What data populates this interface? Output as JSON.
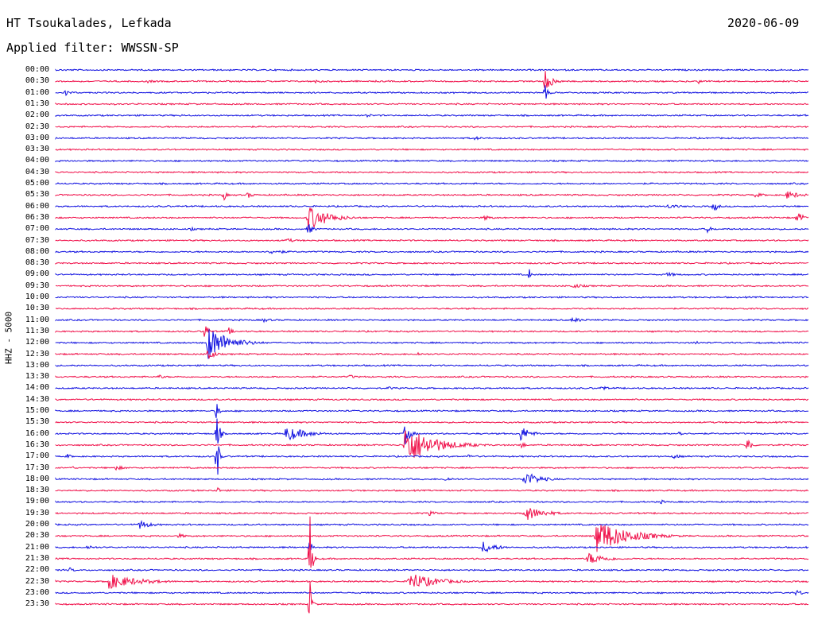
{
  "header": {
    "station": "HT Tsoukalades, Lefkada",
    "filter": "Applied filter: WWSSN-SP",
    "date": "2020-06-09"
  },
  "channel": "HHZ - 5000",
  "colors": {
    "blue": "#1010e0",
    "red": "#f0104a"
  },
  "rows": [
    {
      "time": "00:00",
      "color": "blue"
    },
    {
      "time": "00:30",
      "color": "red"
    },
    {
      "time": "01:00",
      "color": "blue"
    },
    {
      "time": "01:30",
      "color": "red"
    },
    {
      "time": "02:00",
      "color": "blue"
    },
    {
      "time": "02:30",
      "color": "red"
    },
    {
      "time": "03:00",
      "color": "blue"
    },
    {
      "time": "03:30",
      "color": "red"
    },
    {
      "time": "04:00",
      "color": "blue"
    },
    {
      "time": "04:30",
      "color": "red"
    },
    {
      "time": "05:00",
      "color": "blue"
    },
    {
      "time": "05:30",
      "color": "red"
    },
    {
      "time": "06:00",
      "color": "blue"
    },
    {
      "time": "06:30",
      "color": "red"
    },
    {
      "time": "07:00",
      "color": "blue"
    },
    {
      "time": "07:30",
      "color": "red"
    },
    {
      "time": "08:00",
      "color": "blue"
    },
    {
      "time": "08:30",
      "color": "red"
    },
    {
      "time": "09:00",
      "color": "blue"
    },
    {
      "time": "09:30",
      "color": "red"
    },
    {
      "time": "10:00",
      "color": "blue"
    },
    {
      "time": "10:30",
      "color": "red"
    },
    {
      "time": "11:00",
      "color": "blue"
    },
    {
      "time": "11:30",
      "color": "red"
    },
    {
      "time": "12:00",
      "color": "blue"
    },
    {
      "time": "12:30",
      "color": "red"
    },
    {
      "time": "13:00",
      "color": "blue"
    },
    {
      "time": "13:30",
      "color": "red"
    },
    {
      "time": "14:00",
      "color": "blue"
    },
    {
      "time": "14:30",
      "color": "red"
    },
    {
      "time": "15:00",
      "color": "blue"
    },
    {
      "time": "15:30",
      "color": "red"
    },
    {
      "time": "16:00",
      "color": "blue"
    },
    {
      "time": "16:30",
      "color": "red"
    },
    {
      "time": "17:00",
      "color": "blue"
    },
    {
      "time": "17:30",
      "color": "red"
    },
    {
      "time": "18:00",
      "color": "blue"
    },
    {
      "time": "18:30",
      "color": "red"
    },
    {
      "time": "19:00",
      "color": "blue"
    },
    {
      "time": "19:30",
      "color": "red"
    },
    {
      "time": "20:00",
      "color": "blue"
    },
    {
      "time": "20:30",
      "color": "red"
    },
    {
      "time": "21:00",
      "color": "blue"
    },
    {
      "time": "21:30",
      "color": "red"
    },
    {
      "time": "22:00",
      "color": "blue"
    },
    {
      "time": "22:30",
      "color": "red"
    },
    {
      "time": "23:00",
      "color": "blue"
    },
    {
      "time": "23:30",
      "color": "red"
    }
  ]
}
